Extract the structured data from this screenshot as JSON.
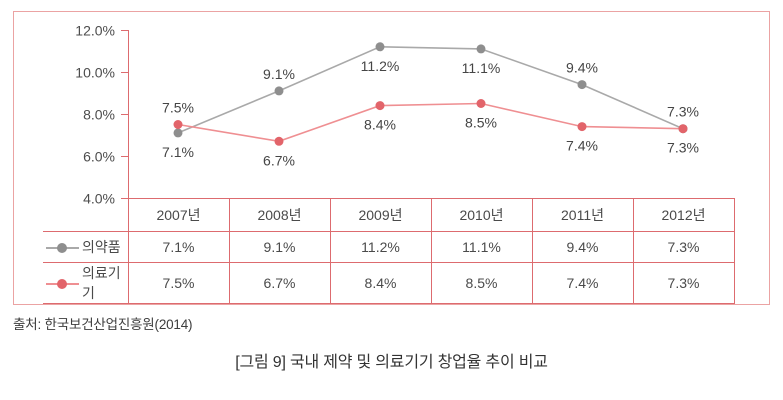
{
  "chart_data": {
    "type": "line",
    "title": "[그림 9] 국내 제약 및 의료기기 창업율 추이 비교",
    "categories": [
      "2007년",
      "2008년",
      "2009년",
      "2010년",
      "2011년",
      "2012년"
    ],
    "series": [
      {
        "name": "의약품",
        "values": [
          7.1,
          9.1,
          11.2,
          11.1,
          9.4,
          7.3
        ],
        "labels": [
          "7.1%",
          "9.1%",
          "11.2%",
          "11.1%",
          "9.4%",
          "7.3%"
        ],
        "label_pos": [
          "below",
          "above",
          "below",
          "below",
          "above",
          "above"
        ],
        "line_color": "#a9a9a9",
        "marker_color": "#8e8e8e"
      },
      {
        "name": "의료기기",
        "values": [
          7.5,
          6.7,
          8.4,
          8.5,
          7.4,
          7.3
        ],
        "labels": [
          "7.5%",
          "6.7%",
          "8.4%",
          "8.5%",
          "7.4%",
          "7.3%"
        ],
        "label_pos": [
          "above",
          "below",
          "below",
          "below",
          "below",
          "below"
        ],
        "line_color": "#ef8f92",
        "marker_color": "#e2646a"
      }
    ],
    "ylim": [
      4,
      12
    ],
    "y_ticks": [
      {
        "value": 12,
        "label": "12.0%"
      },
      {
        "value": 10,
        "label": "10.0%"
      },
      {
        "value": 8,
        "label": "8.0%"
      },
      {
        "value": 6,
        "label": "6.0%"
      },
      {
        "value": 4,
        "label": "4.0%"
      }
    ],
    "grid": false,
    "legend_position": "table-rows-left",
    "xlabel": "",
    "ylabel": ""
  },
  "footer": {
    "source": "출처: 한국보건산업진흥원(2014)",
    "caption": "[그림 9] 국내 제약 및 의료기기 창업율 추이 비교"
  },
  "colors": {
    "frame_border": "#eba3a3",
    "table_border": "#dd6b6f",
    "axis": "#dd6b6f",
    "tick_label_text": "#4d4d4d",
    "data_label_text": "#454545",
    "table_text": "#4a4a4a"
  }
}
